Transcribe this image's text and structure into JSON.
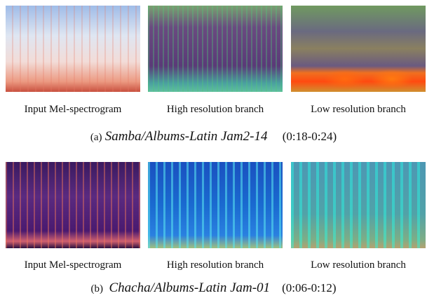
{
  "figures": [
    {
      "panels": [
        {
          "label": "Input Mel-spectrogram"
        },
        {
          "label": "High resolution branch"
        },
        {
          "label": "Low resolution branch"
        }
      ],
      "caption": {
        "tag": "(a)",
        "title": "Samba/Albums-Latin Jam2-14",
        "time": "(0:18-0:24)"
      }
    },
    {
      "panels": [
        {
          "label": "Input Mel-spectrogram"
        },
        {
          "label": "High resolution branch"
        },
        {
          "label": "Low resolution branch"
        }
      ],
      "caption": {
        "tag": "(b)",
        "title": "Chacha/Albums-Latin Jam-01",
        "time": "(0:06-0:12)"
      }
    }
  ]
}
